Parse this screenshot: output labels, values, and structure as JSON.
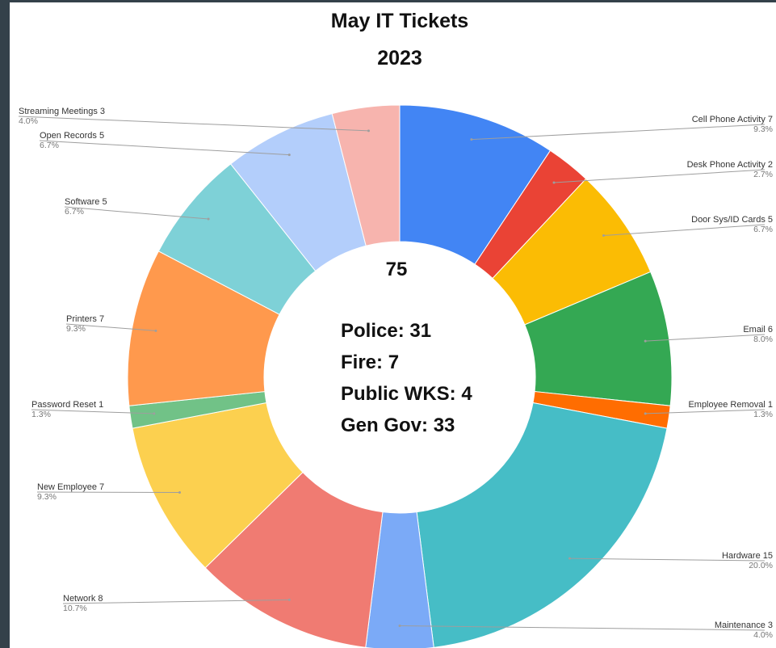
{
  "chart_data": {
    "type": "pie",
    "donut": true,
    "title": "May IT Tickets",
    "subtitle": "2023",
    "total": "75",
    "center_breakdown": [
      {
        "label": "Police:",
        "value": "31"
      },
      {
        "label": "Fire:",
        "value": "7"
      },
      {
        "label": "Public WKS:",
        "value": "4"
      },
      {
        "label": "Gen Gov:",
        "value": "33"
      }
    ],
    "slices": [
      {
        "name": "Cell Phone Activity",
        "value": 7,
        "percent": "9.3%",
        "color": "#4285f4",
        "label": "Cell Phone Activity  7"
      },
      {
        "name": "Desk Phone Activity",
        "value": 2,
        "percent": "2.7%",
        "color": "#ea4335",
        "label": "Desk Phone Activity  2"
      },
      {
        "name": "Door Sys/ID Cards",
        "value": 5,
        "percent": "6.7%",
        "color": "#fbbc04",
        "label": "Door Sys/ID Cards  5"
      },
      {
        "name": "Email",
        "value": 6,
        "percent": "8.0%",
        "color": "#34a853",
        "label": "Email  6"
      },
      {
        "name": "Employee Removal",
        "value": 1,
        "percent": "1.3%",
        "color": "#ff6d01",
        "label": "Employee Removal  1"
      },
      {
        "name": "Hardware",
        "value": 15,
        "percent": "20.0%",
        "color": "#46bdc6",
        "label": "Hardware  15"
      },
      {
        "name": "Maintenance",
        "value": 3,
        "percent": "4.0%",
        "color": "#7baaf7",
        "label": "Maintenance  3"
      },
      {
        "name": "Network",
        "value": 8,
        "percent": "10.7%",
        "color": "#f07b72",
        "label": "Network  8"
      },
      {
        "name": "New Employee",
        "value": 7,
        "percent": "9.3%",
        "color": "#fcd04f",
        "label": "New Employee  7"
      },
      {
        "name": "Password Reset",
        "value": 1,
        "percent": "1.3%",
        "color": "#71c287",
        "label": "Password Reset  1"
      },
      {
        "name": "Printers",
        "value": 7,
        "percent": "9.3%",
        "color": "#ff994d",
        "label": "Printers  7"
      },
      {
        "name": "Software",
        "value": 5,
        "percent": "6.7%",
        "color": "#7ed1d7",
        "label": "Software  5"
      },
      {
        "name": "Open Records",
        "value": 5,
        "percent": "6.7%",
        "color": "#b3cefb",
        "label": "Open Records  5"
      },
      {
        "name": "Streaming Meetings",
        "value": 3,
        "percent": "4.0%",
        "color": "#f7b4ae",
        "label": "Streaming Meetings  3"
      }
    ]
  }
}
